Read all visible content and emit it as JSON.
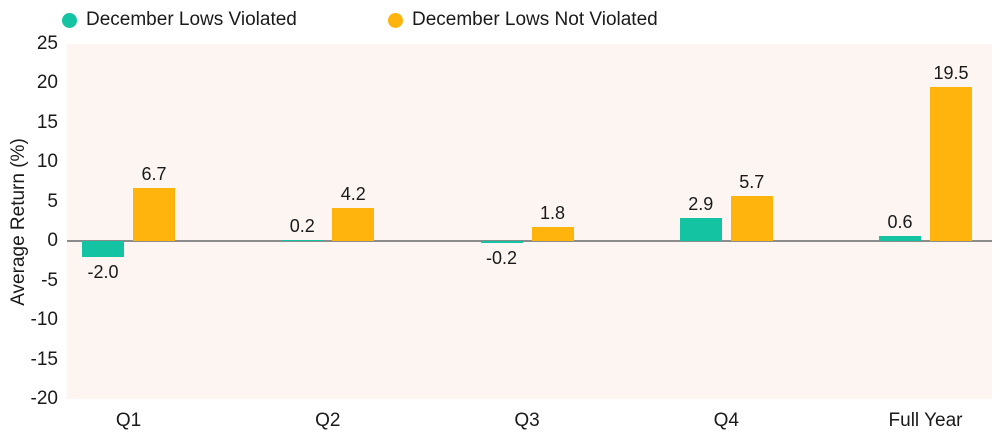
{
  "chart_data": {
    "type": "bar",
    "title": "",
    "categories": [
      "Q1",
      "Q2",
      "Q3",
      "Q4",
      "Full Year"
    ],
    "series": [
      {
        "name": "December Lows Violated",
        "color": "#14C3A1",
        "values": [
          -2.0,
          0.2,
          -0.2,
          2.9,
          0.6
        ]
      },
      {
        "name": "December Lows Not Violated",
        "color": "#FFB30D",
        "values": [
          6.7,
          4.2,
          1.8,
          5.7,
          19.5
        ]
      }
    ],
    "xlabel": "",
    "ylabel": "Average Return (%)",
    "ylim": [
      -20,
      25
    ],
    "yticks": [
      25,
      20,
      15,
      10,
      5,
      0,
      -5,
      -10,
      -15,
      -20
    ],
    "grid": false,
    "legend_position": "top-left",
    "value_labels": true,
    "value_label_format": "one_decimal",
    "plot_bg": "#FDF5F2",
    "zero_line_color": "#8C8C8C",
    "text_color": "#1A1A1A"
  }
}
